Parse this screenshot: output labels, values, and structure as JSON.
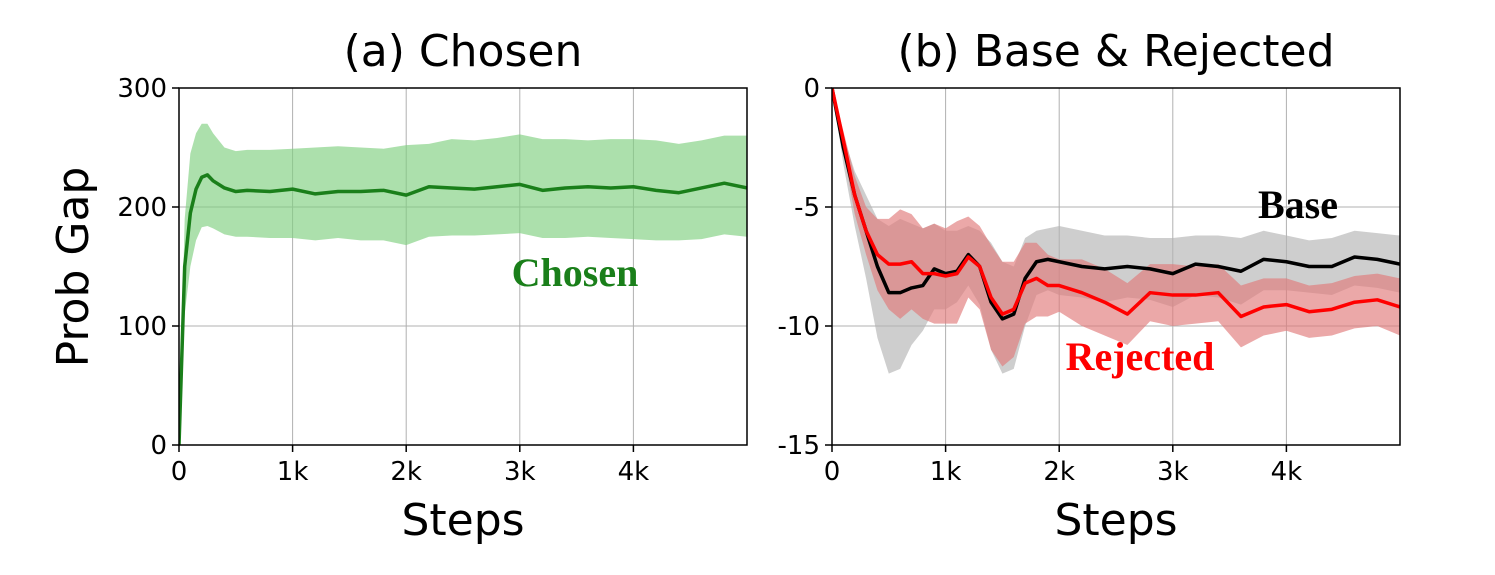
{
  "chart_data": [
    {
      "type": "line",
      "title": "(a) Chosen",
      "xlabel": "Steps",
      "ylabel": "Prob Gap",
      "xlim": [
        0,
        5000
      ],
      "ylim": [
        0,
        300
      ],
      "xticks": [
        0,
        1000,
        2000,
        3000,
        4000
      ],
      "xtick_labels": [
        "0",
        "1k",
        "2k",
        "3k",
        "4k"
      ],
      "yticks": [
        0,
        100,
        200,
        300
      ],
      "ytick_labels": [
        "0",
        "100",
        "200",
        "300"
      ],
      "grid": true,
      "series": [
        {
          "name": "Chosen",
          "color": "#1a7f1a",
          "band_color": "#7fcf7f",
          "x": [
            0,
            50,
            100,
            150,
            200,
            250,
            300,
            400,
            500,
            600,
            800,
            1000,
            1200,
            1400,
            1600,
            1800,
            2000,
            2200,
            2400,
            2600,
            2800,
            3000,
            3200,
            3400,
            3600,
            3800,
            4000,
            4200,
            4400,
            4600,
            4800,
            5000
          ],
          "mean": [
            0,
            150,
            195,
            215,
            225,
            227,
            222,
            216,
            213,
            214,
            213,
            215,
            211,
            213,
            213,
            214,
            210,
            217,
            216,
            215,
            217,
            219,
            214,
            216,
            217,
            216,
            217,
            214,
            212,
            216,
            220,
            216
          ],
          "upper": [
            0,
            190,
            245,
            262,
            270,
            270,
            262,
            250,
            247,
            248,
            248,
            249,
            250,
            251,
            250,
            249,
            252,
            253,
            257,
            256,
            258,
            261,
            257,
            257,
            256,
            257,
            257,
            256,
            253,
            256,
            260,
            260
          ],
          "lower": [
            0,
            110,
            150,
            172,
            183,
            184,
            182,
            177,
            175,
            175,
            174,
            174,
            172,
            174,
            172,
            172,
            168,
            175,
            176,
            176,
            177,
            178,
            174,
            174,
            175,
            174,
            173,
            172,
            172,
            173,
            177,
            175
          ]
        }
      ]
    },
    {
      "type": "line",
      "title": "(b) Base & Rejected",
      "xlabel": "Steps",
      "ylabel": "",
      "xlim": [
        0,
        5000
      ],
      "ylim": [
        -15,
        0
      ],
      "xticks": [
        0,
        1000,
        2000,
        3000,
        4000
      ],
      "xtick_labels": [
        "0",
        "1k",
        "2k",
        "3k",
        "4k"
      ],
      "yticks": [
        0,
        -5,
        -10,
        -15
      ],
      "ytick_labels": [
        "0",
        "-5",
        "-10",
        "-15"
      ],
      "grid": true,
      "series": [
        {
          "name": "Base",
          "color": "#000000",
          "band_color": "#b3b3b3",
          "x": [
            0,
            100,
            200,
            300,
            400,
            500,
            600,
            700,
            800,
            900,
            1000,
            1100,
            1200,
            1300,
            1400,
            1500,
            1600,
            1700,
            1800,
            1900,
            2000,
            2200,
            2400,
            2600,
            2800,
            3000,
            3200,
            3400,
            3600,
            3800,
            4000,
            4200,
            4400,
            4600,
            4800,
            5000
          ],
          "mean": [
            0,
            -2.5,
            -4.5,
            -6,
            -7.5,
            -8.6,
            -8.6,
            -8.4,
            -8.3,
            -7.6,
            -7.8,
            -7.7,
            -7.0,
            -7.5,
            -9.0,
            -9.7,
            -9.5,
            -8.0,
            -7.3,
            -7.2,
            -7.3,
            -7.5,
            -7.6,
            -7.5,
            -7.6,
            -7.8,
            -7.4,
            -7.5,
            -7.7,
            -7.2,
            -7.3,
            -7.5,
            -7.5,
            -7.1,
            -7.2,
            -7.4
          ],
          "upper": [
            0,
            -2.0,
            -3.5,
            -4.5,
            -5.5,
            -5.8,
            -5.5,
            -5.7,
            -5.9,
            -5.7,
            -6.0,
            -6.0,
            -5.8,
            -6.0,
            -6.5,
            -7.3,
            -7.5,
            -6.3,
            -6.0,
            -5.9,
            -5.8,
            -6.0,
            -6.2,
            -6.2,
            -6.3,
            -6.3,
            -6.2,
            -6.2,
            -6.3,
            -6.0,
            -6.2,
            -6.4,
            -6.3,
            -6.0,
            -6.1,
            -6.2
          ],
          "lower": [
            0,
            -3.2,
            -5.8,
            -8.0,
            -10.5,
            -12.0,
            -11.8,
            -10.8,
            -10.2,
            -9.3,
            -9.3,
            -9.0,
            -8.3,
            -9.1,
            -11.0,
            -12.0,
            -11.8,
            -10.0,
            -8.7,
            -8.5,
            -8.7,
            -8.8,
            -9.0,
            -8.8,
            -8.9,
            -9.2,
            -8.7,
            -8.8,
            -9.1,
            -8.5,
            -8.5,
            -8.6,
            -8.7,
            -8.3,
            -8.4,
            -8.6
          ]
        },
        {
          "name": "Rejected",
          "color": "#ff0000",
          "band_color": "#e07a7a",
          "x": [
            0,
            100,
            200,
            300,
            400,
            500,
            600,
            700,
            800,
            900,
            1000,
            1100,
            1200,
            1300,
            1400,
            1500,
            1600,
            1700,
            1800,
            1900,
            2000,
            2200,
            2400,
            2600,
            2800,
            3000,
            3200,
            3400,
            3600,
            3800,
            4000,
            4200,
            4400,
            4600,
            4800,
            5000
          ],
          "mean": [
            0,
            -2.2,
            -4.5,
            -6.0,
            -7.0,
            -7.4,
            -7.4,
            -7.3,
            -7.8,
            -7.8,
            -7.9,
            -7.8,
            -7.1,
            -7.5,
            -8.8,
            -9.5,
            -9.3,
            -8.2,
            -8.0,
            -8.3,
            -8.3,
            -8.6,
            -9.0,
            -9.5,
            -8.6,
            -8.7,
            -8.7,
            -8.6,
            -9.6,
            -9.2,
            -9.1,
            -9.4,
            -9.3,
            -9.0,
            -8.9,
            -9.2
          ],
          "upper": [
            0,
            -1.8,
            -3.7,
            -5.0,
            -5.5,
            -5.5,
            -5.1,
            -5.3,
            -5.9,
            -5.7,
            -5.9,
            -5.6,
            -5.4,
            -5.8,
            -6.6,
            -7.3,
            -7.3,
            -6.5,
            -6.5,
            -7.0,
            -7.2,
            -7.2,
            -7.6,
            -8.2,
            -7.4,
            -7.4,
            -7.5,
            -7.4,
            -8.3,
            -8.0,
            -8.0,
            -8.3,
            -8.2,
            -7.9,
            -7.8,
            -8.0
          ],
          "lower": [
            0,
            -2.6,
            -5.3,
            -7.0,
            -8.5,
            -9.3,
            -9.7,
            -9.3,
            -9.7,
            -9.9,
            -9.9,
            -9.9,
            -8.8,
            -9.3,
            -11.0,
            -11.7,
            -11.3,
            -9.9,
            -9.6,
            -9.6,
            -9.4,
            -10.0,
            -10.4,
            -10.8,
            -9.8,
            -10.0,
            -9.9,
            -9.8,
            -10.9,
            -10.4,
            -10.2,
            -10.5,
            -10.4,
            -10.1,
            -10.0,
            -10.4
          ]
        }
      ]
    }
  ],
  "panels": {
    "a": {
      "title": "(a) Chosen",
      "xlabel": "Steps",
      "ylabel": "Prob Gap",
      "annotation": "Chosen",
      "annotation_color": "#1a7f1a"
    },
    "b": {
      "title": "(b) Base & Rejected",
      "xlabel": "Steps",
      "annotation_base": "Base",
      "annotation_base_color": "#000000",
      "annotation_rejected": "Rejected",
      "annotation_rejected_color": "#ff0000"
    }
  }
}
